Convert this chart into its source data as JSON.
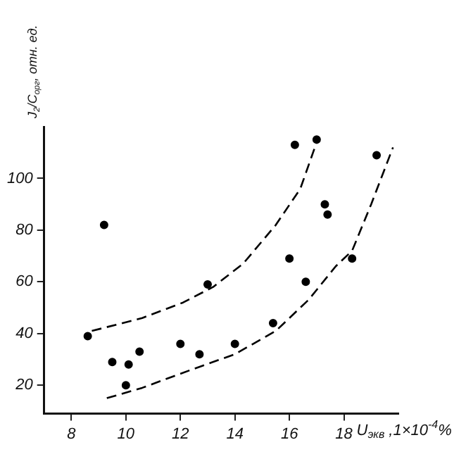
{
  "chart_data": {
    "type": "scatter",
    "xlabel": "U$_{экв}$ ,1×10$^{-4}$%",
    "ylabel": "J$_{2}$/C$_{орг}$, отн. ед.",
    "xlim": [
      7,
      20
    ],
    "xticks": [
      8,
      10,
      12,
      14,
      16,
      18
    ],
    "ylim": [
      9,
      120
    ],
    "yticks": [
      20,
      40,
      60,
      80,
      100
    ],
    "grid": false,
    "legend": false,
    "marker": "circle",
    "series": [
      {
        "color": "#000000",
        "x": [
          9.2,
          16.2,
          17.0,
          19.2,
          17.3,
          17.4,
          16.0,
          18.3,
          13.0,
          16.6,
          8.6,
          15.4,
          12.0,
          9.5,
          10.1,
          10.5,
          10.0,
          12.7,
          14.0
        ],
        "values": [
          82,
          113,
          115,
          109,
          90,
          86,
          69,
          69,
          59,
          60,
          39,
          44,
          36,
          29,
          28,
          33,
          20,
          32,
          36
        ]
      },
      {
        "type": "line",
        "marker": "none",
        "line_style": "dashed",
        "color": "#000000",
        "x": [
          8.75,
          10.6,
          12.1,
          13.2,
          14.3,
          15.5,
          16.4,
          17.0
        ],
        "values": [
          41,
          46,
          52,
          58,
          67,
          82,
          96,
          114
        ]
      },
      {
        "type": "line",
        "marker": "none",
        "line_style": "dashed",
        "color": "#000000",
        "x": [
          9.3,
          10.6,
          12.4,
          14.0,
          15.5,
          16.7,
          17.7,
          18.3,
          19.0,
          19.8
        ],
        "values": [
          15,
          19,
          26,
          32,
          41,
          53,
          66,
          72,
          90,
          112
        ]
      }
    ]
  }
}
